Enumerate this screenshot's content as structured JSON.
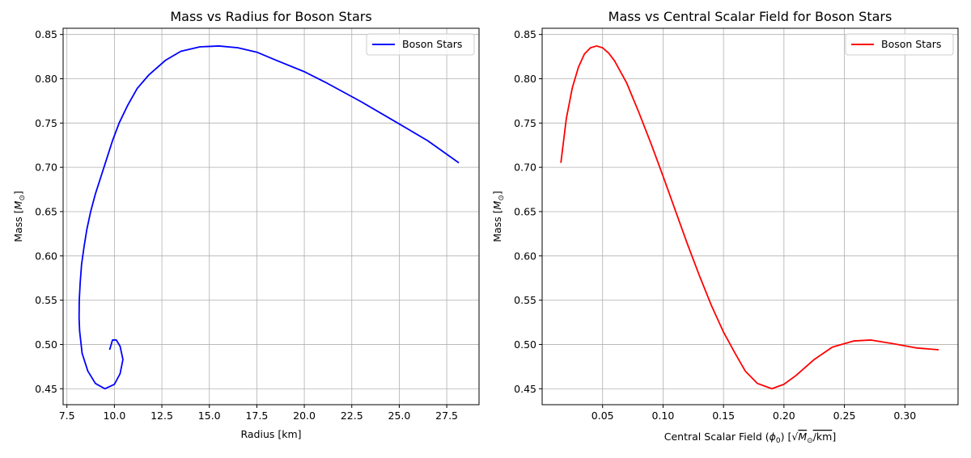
{
  "chart_data": [
    {
      "type": "line",
      "title": "Mass vs Radius for Boson Stars",
      "xlabel": "Radius [km]",
      "ylabel": "Mass [M⊙]",
      "xlim": [
        7.3,
        29.2
      ],
      "ylim": [
        0.432,
        0.857
      ],
      "xticks": [
        7.5,
        10.0,
        12.5,
        15.0,
        17.5,
        20.0,
        22.5,
        25.0,
        27.5
      ],
      "xtick_labels": [
        "7.5",
        "10.0",
        "12.5",
        "15.0",
        "17.5",
        "20.0",
        "22.5",
        "25.0",
        "27.5"
      ],
      "yticks": [
        0.45,
        0.5,
        0.55,
        0.6,
        0.65,
        0.7,
        0.75,
        0.8,
        0.85
      ],
      "ytick_labels": [
        "0.45",
        "0.50",
        "0.55",
        "0.60",
        "0.65",
        "0.70",
        "0.75",
        "0.80",
        "0.85"
      ],
      "grid": true,
      "legend_position": "top-right",
      "series": [
        {
          "name": "Boson Stars",
          "color": "#0000ff",
          "points": [
            [
              28.14,
              0.705
            ],
            [
              26.5,
              0.73
            ],
            [
              25.0,
              0.749
            ],
            [
              23.0,
              0.774
            ],
            [
              21.2,
              0.795
            ],
            [
              20.0,
              0.808
            ],
            [
              18.5,
              0.821
            ],
            [
              17.5,
              0.83
            ],
            [
              16.5,
              0.835
            ],
            [
              15.5,
              0.837
            ],
            [
              14.5,
              0.836
            ],
            [
              13.5,
              0.831
            ],
            [
              12.7,
              0.821
            ],
            [
              11.8,
              0.804
            ],
            [
              11.2,
              0.789
            ],
            [
              10.7,
              0.77
            ],
            [
              10.25,
              0.75
            ],
            [
              9.9,
              0.73
            ],
            [
              9.6,
              0.71
            ],
            [
              9.3,
              0.69
            ],
            [
              9.0,
              0.67
            ],
            [
              8.75,
              0.65
            ],
            [
              8.55,
              0.63
            ],
            [
              8.4,
              0.61
            ],
            [
              8.27,
              0.59
            ],
            [
              8.2,
              0.57
            ],
            [
              8.15,
              0.55
            ],
            [
              8.14,
              0.53
            ],
            [
              8.17,
              0.515
            ],
            [
              8.3,
              0.49
            ],
            [
              8.6,
              0.47
            ],
            [
              9.0,
              0.456
            ],
            [
              9.5,
              0.45
            ],
            [
              10.0,
              0.455
            ],
            [
              10.3,
              0.467
            ],
            [
              10.45,
              0.483
            ],
            [
              10.3,
              0.498
            ],
            [
              10.1,
              0.505
            ],
            [
              9.9,
              0.505
            ],
            [
              9.75,
              0.494
            ]
          ]
        }
      ]
    },
    {
      "type": "line",
      "title": "Mass vs Central Scalar Field for Boson Stars",
      "xlabel": "Central Scalar Field (ϕ₀) [√M⊙/km]",
      "ylabel": "Mass [M⊙]",
      "xlim": [
        0.0,
        0.344
      ],
      "ylim": [
        0.432,
        0.857
      ],
      "xticks": [
        0.05,
        0.1,
        0.15,
        0.2,
        0.25,
        0.3
      ],
      "xtick_labels": [
        "0.05",
        "0.10",
        "0.15",
        "0.20",
        "0.25",
        "0.30"
      ],
      "yticks": [
        0.45,
        0.5,
        0.55,
        0.6,
        0.65,
        0.7,
        0.75,
        0.8,
        0.85
      ],
      "ytick_labels": [
        "0.45",
        "0.50",
        "0.55",
        "0.60",
        "0.65",
        "0.70",
        "0.75",
        "0.80",
        "0.85"
      ],
      "grid": true,
      "legend_position": "top-right",
      "series": [
        {
          "name": "Boson Stars",
          "color": "#ff0000",
          "points": [
            [
              0.0155,
              0.705
            ],
            [
              0.02,
              0.755
            ],
            [
              0.025,
              0.79
            ],
            [
              0.03,
              0.813
            ],
            [
              0.035,
              0.828
            ],
            [
              0.04,
              0.835
            ],
            [
              0.045,
              0.837
            ],
            [
              0.05,
              0.835
            ],
            [
              0.055,
              0.829
            ],
            [
              0.06,
              0.82
            ],
            [
              0.07,
              0.795
            ],
            [
              0.08,
              0.762
            ],
            [
              0.09,
              0.727
            ],
            [
              0.1,
              0.69
            ],
            [
              0.11,
              0.652
            ],
            [
              0.12,
              0.614
            ],
            [
              0.13,
              0.578
            ],
            [
              0.14,
              0.544
            ],
            [
              0.15,
              0.514
            ],
            [
              0.16,
              0.489
            ],
            [
              0.168,
              0.47
            ],
            [
              0.178,
              0.456
            ],
            [
              0.19,
              0.45
            ],
            [
              0.2,
              0.455
            ],
            [
              0.21,
              0.465
            ],
            [
              0.225,
              0.483
            ],
            [
              0.24,
              0.497
            ],
            [
              0.258,
              0.504
            ],
            [
              0.272,
              0.505
            ],
            [
              0.29,
              0.501
            ],
            [
              0.31,
              0.496
            ],
            [
              0.328,
              0.494
            ]
          ]
        }
      ]
    }
  ]
}
